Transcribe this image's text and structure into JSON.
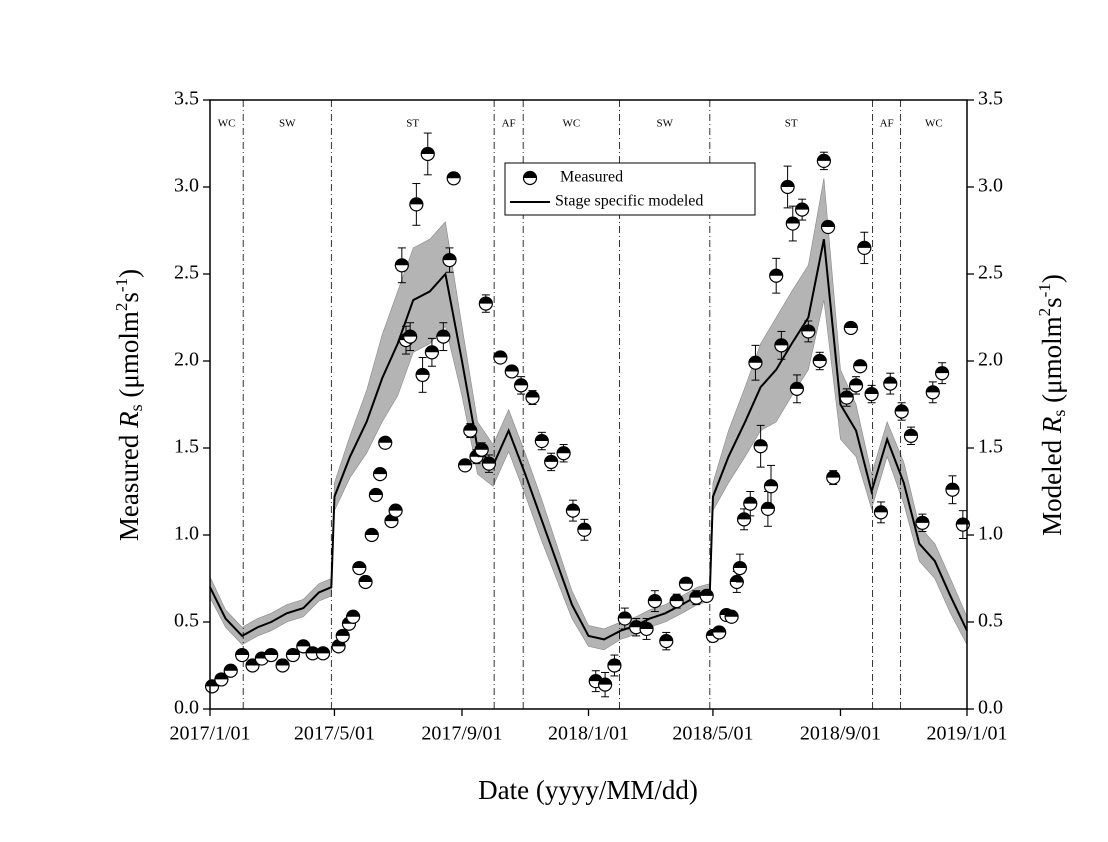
{
  "chart_data": {
    "type": "scatter",
    "x_label": "Date (yyyy/MM/dd)",
    "y_label": [
      "Measured ",
      "R",
      "s",
      " (μmolm",
      "2",
      "s",
      "-1",
      ")"
    ],
    "y2_label": [
      "Modeled ",
      "R",
      "s",
      " (μmolm",
      "2",
      "s",
      "-1",
      ")"
    ],
    "xlim": [
      "2017/1/01",
      "2019/1/01"
    ],
    "xticks": [
      "2017/1/01",
      "2017/5/01",
      "2017/9/01",
      "2018/1/01",
      "2018/5/01",
      "2018/9/01",
      "2019/1/01"
    ],
    "ylim": [
      0,
      3.5
    ],
    "yticks": [
      {
        "value": 0,
        "label": "0.0"
      },
      0.5,
      {
        "value": 1,
        "label": "1.0"
      },
      1.5,
      {
        "value": 2,
        "label": "2.0"
      },
      2.5,
      {
        "value": 3,
        "label": "3.0"
      },
      3.5
    ],
    "y2lim": [
      0,
      3.5
    ],
    "y2ticks": [
      {
        "value": 0,
        "label": "0.0"
      },
      0.5,
      {
        "value": 1,
        "label": "1.0"
      },
      1.5,
      {
        "value": 2,
        "label": "2.0"
      },
      2.5,
      {
        "value": 3,
        "label": "3.0"
      },
      3.5
    ],
    "stage_dividers": [
      "2017/2/02",
      "2017/4/28",
      "2017/10/02",
      "2017/10/30",
      "2018/1/31",
      "2018/4/28",
      "2018/10/02",
      "2018/10/29"
    ],
    "stage_labels": [
      "WC",
      "SW",
      "ST",
      "AF",
      "WC",
      "SW",
      "ST",
      "AF",
      "WC"
    ],
    "series": [
      {
        "name": "Measured",
        "type": "scatter",
        "axis": "y",
        "color": "#000000",
        "x": [
          "2017/1/03",
          "2017/1/12",
          "2017/1/21",
          "2017/2/01",
          "2017/2/11",
          "2017/2/20",
          "2017/3/01",
          "2017/3/12",
          "2017/3/22",
          "2017/4/01",
          "2017/4/10",
          "2017/4/20",
          "2017/5/05",
          "2017/5/09",
          "2017/5/15",
          "2017/5/19",
          "2017/5/25",
          "2017/5/31",
          "2017/6/06",
          "2017/6/10",
          "2017/6/14",
          "2017/6/19",
          "2017/6/25",
          "2017/6/29",
          "2017/7/05",
          "2017/7/09",
          "2017/7/13",
          "2017/7/19",
          "2017/7/25",
          "2017/7/30",
          "2017/8/03",
          "2017/8/14",
          "2017/8/20",
          "2017/8/24",
          "2017/9/04",
          "2017/9/09",
          "2017/9/15",
          "2017/9/20",
          "2017/9/24",
          "2017/9/27",
          "2017/10/08",
          "2017/10/19",
          "2017/10/28",
          "2017/11/08",
          "2017/11/17",
          "2017/11/26",
          "2017/12/08",
          "2017/12/17",
          "2017/12/28",
          "2018/1/08",
          "2018/1/17",
          "2018/1/26",
          "2018/2/05",
          "2018/2/16",
          "2018/2/26",
          "2018/3/06",
          "2018/3/17",
          "2018/3/27",
          "2018/4/05",
          "2018/4/15",
          "2018/4/25",
          "2018/5/01",
          "2018/5/07",
          "2018/5/14",
          "2018/5/19",
          "2018/5/24",
          "2018/5/27",
          "2018/5/31",
          "2018/6/06",
          "2018/6/11",
          "2018/6/16",
          "2018/6/23",
          "2018/6/26",
          "2018/7/01",
          "2018/7/06",
          "2018/7/12",
          "2018/7/17",
          "2018/7/21",
          "2018/7/26",
          "2018/8/01",
          "2018/8/12",
          "2018/8/16",
          "2018/8/20",
          "2018/8/25",
          "2018/9/07",
          "2018/9/11",
          "2018/9/16",
          "2018/9/20",
          "2018/9/24",
          "2018/10/01",
          "2018/10/10",
          "2018/10/19",
          "2018/10/30",
          "2018/11/08",
          "2018/11/19",
          "2018/11/29",
          "2018/12/08",
          "2018/12/18",
          "2018/12/28"
        ],
        "values": [
          0.13,
          0.17,
          0.22,
          0.31,
          0.25,
          0.29,
          0.31,
          0.25,
          0.31,
          0.36,
          0.32,
          0.32,
          0.36,
          0.42,
          0.49,
          0.53,
          0.81,
          0.73,
          1.0,
          1.23,
          1.35,
          1.53,
          1.08,
          1.14,
          2.55,
          2.12,
          2.14,
          2.9,
          1.92,
          3.19,
          2.05,
          2.14,
          2.58,
          3.05,
          1.4,
          1.6,
          1.45,
          1.49,
          2.33,
          1.41,
          2.02,
          1.94,
          1.86,
          1.79,
          1.54,
          1.42,
          1.47,
          1.14,
          1.03,
          0.16,
          0.14,
          0.25,
          0.52,
          0.47,
          0.46,
          0.62,
          0.39,
          0.62,
          0.72,
          0.64,
          0.65,
          0.42,
          0.44,
          0.54,
          0.53,
          0.73,
          0.81,
          1.09,
          1.18,
          1.99,
          1.51,
          1.15,
          1.28,
          2.49,
          2.09,
          3.0,
          2.79,
          1.84,
          2.87,
          2.17,
          2.0,
          3.15,
          2.77,
          1.33,
          1.79,
          2.19,
          1.86,
          1.97,
          2.65,
          1.81,
          1.13,
          1.87,
          1.71,
          1.57,
          1.07,
          1.82,
          1.93,
          1.26,
          1.06
        ],
        "errors": [
          0.03,
          0.02,
          0.02,
          0.03,
          0.02,
          0.02,
          0.02,
          0.02,
          0.02,
          0.02,
          0.02,
          0.02,
          0.02,
          0.03,
          0.03,
          0.03,
          0.03,
          0.03,
          0.02,
          0.03,
          0.03,
          0.03,
          0.03,
          0.03,
          0.1,
          0.08,
          0.08,
          0.12,
          0.1,
          0.12,
          0.08,
          0.08,
          0.07,
          0.03,
          0.03,
          0.04,
          0.04,
          0.04,
          0.05,
          0.05,
          0.03,
          0.03,
          0.05,
          0.04,
          0.05,
          0.05,
          0.05,
          0.06,
          0.06,
          0.06,
          0.07,
          0.06,
          0.06,
          0.05,
          0.06,
          0.06,
          0.05,
          0.04,
          0.03,
          0.04,
          0.03,
          0.03,
          0.03,
          0.03,
          0.03,
          0.06,
          0.08,
          0.06,
          0.07,
          0.1,
          0.12,
          0.1,
          0.12,
          0.1,
          0.08,
          0.12,
          0.1,
          0.08,
          0.06,
          0.06,
          0.05,
          0.05,
          0.03,
          0.04,
          0.05,
          0.03,
          0.05,
          0.03,
          0.09,
          0.05,
          0.06,
          0.06,
          0.05,
          0.05,
          0.05,
          0.06,
          0.06,
          0.08,
          0.08
        ]
      },
      {
        "name": "Stage specific modeled",
        "type": "line",
        "axis": "y2",
        "color": "#000000",
        "band_color": "#b4b4b4",
        "x": [
          "2017/1/01",
          "2017/1/16",
          "2017/2/01",
          "2017/2/16",
          "2017/3/01",
          "2017/3/16",
          "2017/4/01",
          "2017/4/16",
          "2017/4/28",
          "2017/5/01",
          "2017/5/16",
          "2017/6/01",
          "2017/6/16",
          "2017/7/01",
          "2017/7/16",
          "2017/8/01",
          "2017/8/16",
          "2017/9/01",
          "2017/9/16",
          "2017/10/01",
          "2017/10/16",
          "2017/11/01",
          "2017/11/16",
          "2017/12/01",
          "2017/12/16",
          "2018/1/01",
          "2018/1/16",
          "2018/2/01",
          "2018/2/16",
          "2018/3/01",
          "2018/3/16",
          "2018/4/01",
          "2018/4/16",
          "2018/4/28",
          "2018/5/01",
          "2018/5/16",
          "2018/6/01",
          "2018/6/16",
          "2018/7/01",
          "2018/7/16",
          "2018/8/01",
          "2018/8/16",
          "2018/9/01",
          "2018/9/16",
          "2018/10/01",
          "2018/10/16",
          "2018/11/01",
          "2018/11/16",
          "2018/12/01",
          "2018/12/16",
          "2019/1/01"
        ],
        "values": [
          0.7,
          0.52,
          0.42,
          0.47,
          0.5,
          0.55,
          0.58,
          0.67,
          0.7,
          1.22,
          1.45,
          1.65,
          1.9,
          2.1,
          2.35,
          2.4,
          2.5,
          2.0,
          1.5,
          1.4,
          1.6,
          1.35,
          1.1,
          0.85,
          0.6,
          0.42,
          0.4,
          0.45,
          0.48,
          0.52,
          0.55,
          0.6,
          0.65,
          0.67,
          1.22,
          1.45,
          1.65,
          1.85,
          1.95,
          2.1,
          2.25,
          2.7,
          1.75,
          1.6,
          1.25,
          1.55,
          1.3,
          0.95,
          0.85,
          0.65,
          0.45
        ],
        "lower": [
          0.64,
          0.47,
          0.37,
          0.42,
          0.45,
          0.5,
          0.53,
          0.62,
          0.65,
          1.14,
          1.33,
          1.47,
          1.65,
          1.8,
          2.05,
          2.1,
          2.2,
          1.8,
          1.35,
          1.28,
          1.48,
          1.23,
          0.98,
          0.75,
          0.52,
          0.36,
          0.34,
          0.4,
          0.43,
          0.47,
          0.5,
          0.55,
          0.6,
          0.62,
          1.14,
          1.3,
          1.45,
          1.6,
          1.65,
          1.8,
          1.95,
          2.35,
          1.55,
          1.45,
          1.15,
          1.45,
          1.18,
          0.85,
          0.75,
          0.55,
          0.37
        ],
        "upper": [
          0.76,
          0.57,
          0.47,
          0.52,
          0.55,
          0.6,
          0.63,
          0.72,
          0.75,
          1.3,
          1.57,
          1.83,
          2.15,
          2.4,
          2.65,
          2.7,
          2.8,
          2.2,
          1.65,
          1.52,
          1.72,
          1.47,
          1.22,
          0.95,
          0.68,
          0.48,
          0.46,
          0.5,
          0.53,
          0.57,
          0.6,
          0.65,
          0.7,
          0.72,
          1.3,
          1.6,
          1.85,
          2.1,
          2.25,
          2.4,
          2.55,
          3.05,
          1.95,
          1.75,
          1.35,
          1.65,
          1.42,
          1.05,
          0.95,
          0.75,
          0.53
        ]
      }
    ]
  }
}
